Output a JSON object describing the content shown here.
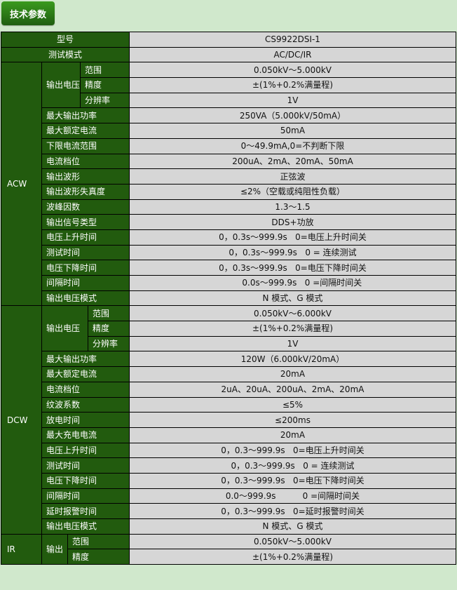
{
  "tab": {
    "label": "技术参数"
  },
  "colors": {
    "key_bg": "#225b0e",
    "value_bg": "#d6d6d6",
    "page_bg": "#d0e8cc"
  },
  "header_rows": [
    {
      "key": "型号",
      "value": "CS9922DSI-1"
    },
    {
      "key": "测试模式",
      "value": "AC/DC/IR"
    }
  ],
  "sections": [
    {
      "name": "ACW",
      "group": "输出电压",
      "group_rows": [
        {
          "key": "范围",
          "value": "0.050kV～5.000kV"
        },
        {
          "key": "精度",
          "value": "±(1%+0.2%满量程)"
        },
        {
          "key": "分辨率",
          "value": "1V"
        }
      ],
      "rows": [
        {
          "key": "最大输出功率",
          "value": "250VA（5.000kV/50mA）"
        },
        {
          "key": "最大额定电流",
          "value": "50mA"
        },
        {
          "key": "下限电流范围",
          "value": "0～49.9mA,0=不判断下限"
        },
        {
          "key": "电流档位",
          "value": "200uA、2mA、20mA、50mA"
        },
        {
          "key": "输出波形",
          "value": "正弦波"
        },
        {
          "key": "输出波形失真度",
          "value": "≤2%（空载或纯阻性负载）"
        },
        {
          "key": "波峰因数",
          "value": "1.3～1.5"
        },
        {
          "key": "输出信号类型",
          "value": "DDS+功放"
        },
        {
          "key": "电压上升时间",
          "value": "0，0.3s～999.9s   0=电压上升时间关"
        },
        {
          "key": "测试时间",
          "value": "0，0.3s～999.9s   0 = 连续测试"
        },
        {
          "key": "电压下降时间",
          "value": "0，0.3s～999.9s   0=电压下降时间关"
        },
        {
          "key": "间隔时间",
          "value": "       0.0s～999.9s   0 =间隔时间关"
        },
        {
          "key": "输出电压模式",
          "value": "N 模式、G 模式"
        }
      ]
    },
    {
      "name": "DCW",
      "group": "输出电压",
      "group_rows": [
        {
          "key": "范围",
          "value": "0.050kV～6.000kV"
        },
        {
          "key": "精度",
          "value": "±(1%+0.2%满量程)"
        },
        {
          "key": "分辨率",
          "value": "1V"
        }
      ],
      "rows": [
        {
          "key": "最大输出功率",
          "value": "120W（6.000kV/20mA）"
        },
        {
          "key": "最大额定电流",
          "value": "20mA"
        },
        {
          "key": "电流档位",
          "value": "2uA、20uA、200uA、2mA、20mA"
        },
        {
          "key": "纹波系数",
          "value": "≤5%"
        },
        {
          "key": "放电时间",
          "value": "≤200ms"
        },
        {
          "key": "最大充电电流",
          "value": "20mA"
        },
        {
          "key": "电压上升时间",
          "value": "0，0.3～999.9s   0=电压上升时间关"
        },
        {
          "key": "测试时间",
          "value": "0，0.3～999.9s   0 = 连续测试"
        },
        {
          "key": "电压下降时间",
          "value": "0，0.3～999.9s   0=电压下降时间关"
        },
        {
          "key": "间隔时间",
          "value": "0.0～999.9s          0 =间隔时间关"
        },
        {
          "key": "延时报警时间",
          "value": "0，0.3～999.9s   0=延时报警时间关"
        },
        {
          "key": "输出电压模式",
          "value": "N 模式、G 模式"
        }
      ]
    },
    {
      "name": "IR",
      "group": "输出",
      "group_rows": [
        {
          "key": "范围",
          "value": "0.050kV～5.000kV"
        },
        {
          "key": "精度",
          "value": "±(1%+0.2%满量程)"
        }
      ],
      "rows": []
    }
  ]
}
